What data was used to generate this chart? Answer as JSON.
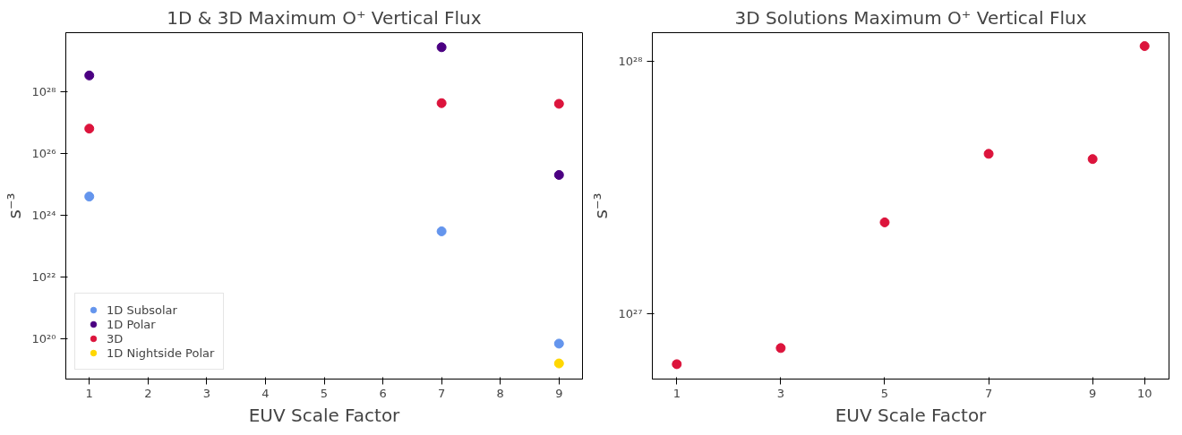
{
  "chart_data": [
    {
      "type": "scatter",
      "title": "1D & 3D Maximum O⁺ Vertical Flux",
      "xlabel": "EUV Scale Factor",
      "ylabel": "s⁻³",
      "log": "y",
      "marker": "circle",
      "legend": "bottom left",
      "grid": false,
      "xlim": [
        0.6,
        9.4
      ],
      "xticks": [
        1,
        2,
        3,
        4,
        5,
        6,
        7,
        8,
        9
      ],
      "ylim": [
        5e+18,
        8e+29
      ],
      "yticks": [
        {
          "value": 1e+20,
          "label": "10²⁰"
        },
        {
          "value": 1e+22,
          "label": "10²²"
        },
        {
          "value": 1e+24,
          "label": "10²⁴"
        },
        {
          "value": 1e+26,
          "label": "10²⁶"
        },
        {
          "value": 1e+28,
          "label": "10²⁸"
        }
      ],
      "series": [
        {
          "name": "1D Subsolar",
          "color": "#6495ed",
          "x": [
            1,
            7,
            9
          ],
          "values": [
            4e+24,
            3e+23,
            7e+19
          ]
        },
        {
          "name": "1D Polar",
          "color": "#4b0082",
          "x": [
            1,
            7,
            9
          ],
          "values": [
            3.3e+28,
            2.7e+29,
            2e+25
          ]
        },
        {
          "name": "3D",
          "color": "#dc143c",
          "x": [
            1,
            7,
            9
          ],
          "values": [
            6.3e+26,
            4.2e+27,
            4e+27
          ]
        },
        {
          "name": "1D Nightside Polar",
          "color": "#ffd700",
          "x": [
            9
          ],
          "values": [
            1.6e+19
          ]
        }
      ]
    },
    {
      "type": "scatter",
      "title": "3D Solutions Maximum O⁺ Vertical Flux",
      "xlabel": "EUV Scale Factor",
      "ylabel": "s⁻³",
      "log": "y",
      "marker": "circle",
      "grid": false,
      "xlim": [
        0.53,
        10.47
      ],
      "xticks": [
        1,
        3,
        5,
        7,
        9,
        10
      ],
      "ylim": [
        5.5e+26,
        1.3e+28
      ],
      "yticks": [
        {
          "value": 1e+27,
          "label": "10²⁷"
        },
        {
          "value": 1e+28,
          "label": "10²⁸"
        }
      ],
      "series": [
        {
          "color": "#dc143c",
          "x": [
            1,
            3,
            5,
            7,
            9,
            10
          ],
          "values": [
            6.3e+26,
            7.3e+26,
            2.3e+27,
            4.3e+27,
            4.1e+27,
            1.15e+28
          ]
        }
      ]
    }
  ]
}
